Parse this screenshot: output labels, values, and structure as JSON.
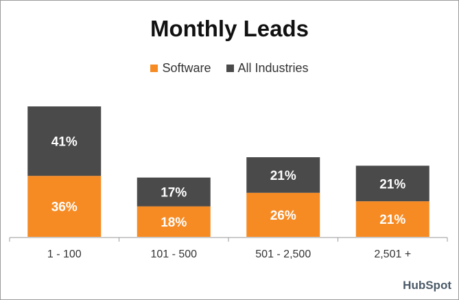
{
  "chart_data": {
    "type": "bar",
    "stacked": true,
    "title": "Monthly Leads",
    "categories": [
      "1 - 100",
      "101 - 500",
      "501 - 2,500",
      "2,501 +"
    ],
    "series": [
      {
        "name": "Software",
        "values": [
          36,
          18,
          26,
          21
        ],
        "labels": [
          "36%",
          "18%",
          "26%",
          "21%"
        ],
        "color": "#f68b24"
      },
      {
        "name": "All Industries",
        "values": [
          41,
          17,
          21,
          21
        ],
        "labels": [
          "41%",
          "17%",
          "21%",
          "21%"
        ],
        "color": "#4a4a4a"
      }
    ],
    "xlabel": "",
    "ylabel": "",
    "ylim": [
      0,
      77
    ],
    "grid": false,
    "legend": "top-center"
  },
  "brand": {
    "logo": "HubSpot"
  }
}
